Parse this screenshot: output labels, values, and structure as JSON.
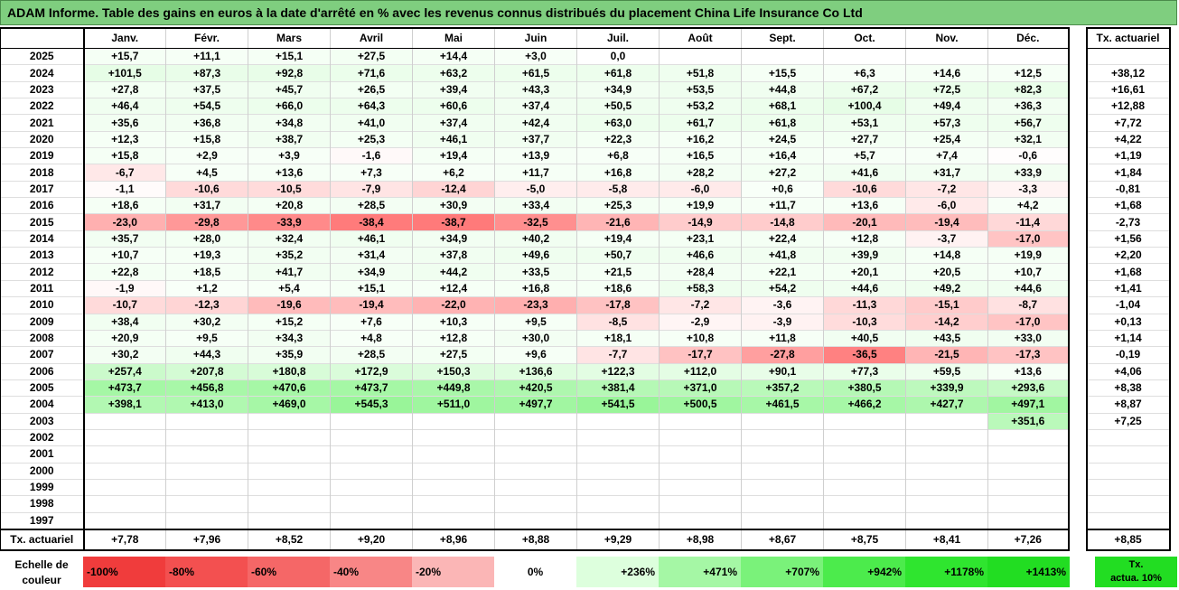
{
  "title": "ADAM Informe. Table des gains en euros à la date d'arrêté en % avec les revenus connus distribués du placement China Life Insurance Co Ltd",
  "months": [
    "Janv.",
    "Févr.",
    "Mars",
    "Avril",
    "Mai",
    "Juin",
    "Juil.",
    "Août",
    "Sept.",
    "Oct.",
    "Nov.",
    "Déc."
  ],
  "tx_header": "Tx. actuariel",
  "rows": [
    {
      "year": "2025",
      "values": [
        "+15,7",
        "+11,1",
        "+15,1",
        "+27,5",
        "+14,4",
        "+3,0",
        "0,0",
        "",
        "",
        "",
        "",
        ""
      ],
      "tx": ""
    },
    {
      "year": "2024",
      "values": [
        "+101,5",
        "+87,3",
        "+92,8",
        "+71,6",
        "+63,2",
        "+61,5",
        "+61,8",
        "+51,8",
        "+15,5",
        "+6,3",
        "+14,6",
        "+12,5"
      ],
      "tx": "+38,12"
    },
    {
      "year": "2023",
      "values": [
        "+27,8",
        "+37,5",
        "+45,7",
        "+26,5",
        "+39,4",
        "+43,3",
        "+34,9",
        "+53,5",
        "+44,8",
        "+67,2",
        "+72,5",
        "+82,3"
      ],
      "tx": "+16,61"
    },
    {
      "year": "2022",
      "values": [
        "+46,4",
        "+54,5",
        "+66,0",
        "+64,3",
        "+60,6",
        "+37,4",
        "+50,5",
        "+53,2",
        "+68,1",
        "+100,4",
        "+49,4",
        "+36,3"
      ],
      "tx": "+12,88"
    },
    {
      "year": "2021",
      "values": [
        "+35,6",
        "+36,8",
        "+34,8",
        "+41,0",
        "+37,4",
        "+42,4",
        "+63,0",
        "+61,7",
        "+61,8",
        "+53,1",
        "+57,3",
        "+56,7"
      ],
      "tx": "+7,72"
    },
    {
      "year": "2020",
      "values": [
        "+12,3",
        "+15,8",
        "+38,7",
        "+25,3",
        "+46,1",
        "+37,7",
        "+22,3",
        "+16,2",
        "+24,5",
        "+27,7",
        "+25,4",
        "+32,1"
      ],
      "tx": "+4,22"
    },
    {
      "year": "2019",
      "values": [
        "+15,8",
        "+2,9",
        "+3,9",
        "-1,6",
        "+19,4",
        "+13,9",
        "+6,8",
        "+16,5",
        "+16,4",
        "+5,7",
        "+7,4",
        "-0,6"
      ],
      "tx": "+1,19"
    },
    {
      "year": "2018",
      "values": [
        "-6,7",
        "+4,5",
        "+13,6",
        "+7,3",
        "+6,2",
        "+11,7",
        "+16,8",
        "+28,2",
        "+27,2",
        "+41,6",
        "+31,7",
        "+33,9"
      ],
      "tx": "+1,84"
    },
    {
      "year": "2017",
      "values": [
        "-1,1",
        "-10,6",
        "-10,5",
        "-7,9",
        "-12,4",
        "-5,0",
        "-5,8",
        "-6,0",
        "+0,6",
        "-10,6",
        "-7,2",
        "-3,3"
      ],
      "tx": "-0,81"
    },
    {
      "year": "2016",
      "values": [
        "+18,6",
        "+31,7",
        "+20,8",
        "+28,5",
        "+30,9",
        "+33,4",
        "+25,3",
        "+19,9",
        "+11,7",
        "+13,6",
        "-6,0",
        "+4,2"
      ],
      "tx": "+1,68"
    },
    {
      "year": "2015",
      "values": [
        "-23,0",
        "-29,8",
        "-33,9",
        "-38,4",
        "-38,7",
        "-32,5",
        "-21,6",
        "-14,9",
        "-14,8",
        "-20,1",
        "-19,4",
        "-11,4"
      ],
      "tx": "-2,73"
    },
    {
      "year": "2014",
      "values": [
        "+35,7",
        "+28,0",
        "+32,4",
        "+46,1",
        "+34,9",
        "+40,2",
        "+19,4",
        "+23,1",
        "+22,4",
        "+12,8",
        "-3,7",
        "-17,0"
      ],
      "tx": "+1,56"
    },
    {
      "year": "2013",
      "values": [
        "+10,7",
        "+19,3",
        "+35,2",
        "+31,4",
        "+37,8",
        "+49,6",
        "+50,7",
        "+46,6",
        "+41,8",
        "+39,9",
        "+14,8",
        "+19,9"
      ],
      "tx": "+2,20"
    },
    {
      "year": "2012",
      "values": [
        "+22,8",
        "+18,5",
        "+41,7",
        "+34,9",
        "+44,2",
        "+33,5",
        "+21,5",
        "+28,4",
        "+22,1",
        "+20,1",
        "+20,5",
        "+10,7"
      ],
      "tx": "+1,68"
    },
    {
      "year": "2011",
      "values": [
        "-1,9",
        "+1,2",
        "+5,4",
        "+15,1",
        "+12,4",
        "+16,8",
        "+18,6",
        "+58,3",
        "+54,2",
        "+44,6",
        "+49,2",
        "+44,6"
      ],
      "tx": "+1,41"
    },
    {
      "year": "2010",
      "values": [
        "-10,7",
        "-12,3",
        "-19,6",
        "-19,4",
        "-22,0",
        "-23,3",
        "-17,8",
        "-7,2",
        "-3,6",
        "-11,3",
        "-15,1",
        "-8,7"
      ],
      "tx": "-1,04"
    },
    {
      "year": "2009",
      "values": [
        "+38,4",
        "+30,2",
        "+15,2",
        "+7,6",
        "+10,3",
        "+9,5",
        "-8,5",
        "-2,9",
        "-3,9",
        "-10,3",
        "-14,2",
        "-17,0"
      ],
      "tx": "+0,13"
    },
    {
      "year": "2008",
      "values": [
        "+20,9",
        "+9,5",
        "+34,3",
        "+4,8",
        "+12,8",
        "+30,0",
        "+18,1",
        "+10,8",
        "+11,8",
        "+40,5",
        "+43,5",
        "+33,0"
      ],
      "tx": "+1,14"
    },
    {
      "year": "2007",
      "values": [
        "+30,2",
        "+44,3",
        "+35,9",
        "+28,5",
        "+27,5",
        "+9,6",
        "-7,7",
        "-17,7",
        "-27,8",
        "-36,5",
        "-21,5",
        "-17,3"
      ],
      "tx": "-0,19"
    },
    {
      "year": "2006",
      "values": [
        "+257,4",
        "+207,8",
        "+180,8",
        "+172,9",
        "+150,3",
        "+136,6",
        "+122,3",
        "+112,0",
        "+90,1",
        "+77,3",
        "+59,5",
        "+13,6"
      ],
      "tx": "+4,06"
    },
    {
      "year": "2005",
      "values": [
        "+473,7",
        "+456,8",
        "+470,6",
        "+473,7",
        "+449,8",
        "+420,5",
        "+381,4",
        "+371,0",
        "+357,2",
        "+380,5",
        "+339,9",
        "+293,6"
      ],
      "tx": "+8,38"
    },
    {
      "year": "2004",
      "values": [
        "+398,1",
        "+413,0",
        "+469,0",
        "+545,3",
        "+511,0",
        "+497,7",
        "+541,5",
        "+500,5",
        "+461,5",
        "+466,2",
        "+427,7",
        "+497,1"
      ],
      "tx": "+8,87"
    },
    {
      "year": "2003",
      "values": [
        "",
        "",
        "",
        "",
        "",
        "",
        "",
        "",
        "",
        "",
        "",
        "+351,6"
      ],
      "tx": "+7,25"
    },
    {
      "year": "2002",
      "values": [
        "",
        "",
        "",
        "",
        "",
        "",
        "",
        "",
        "",
        "",
        "",
        ""
      ],
      "tx": ""
    },
    {
      "year": "2001",
      "values": [
        "",
        "",
        "",
        "",
        "",
        "",
        "",
        "",
        "",
        "",
        "",
        ""
      ],
      "tx": ""
    },
    {
      "year": "2000",
      "values": [
        "",
        "",
        "",
        "",
        "",
        "",
        "",
        "",
        "",
        "",
        "",
        ""
      ],
      "tx": ""
    },
    {
      "year": "1999",
      "values": [
        "",
        "",
        "",
        "",
        "",
        "",
        "",
        "",
        "",
        "",
        "",
        ""
      ],
      "tx": ""
    },
    {
      "year": "1998",
      "values": [
        "",
        "",
        "",
        "",
        "",
        "",
        "",
        "",
        "",
        "",
        "",
        ""
      ],
      "tx": ""
    },
    {
      "year": "1997",
      "values": [
        "",
        "",
        "",
        "",
        "",
        "",
        "",
        "",
        "",
        "",
        "",
        ""
      ],
      "tx": ""
    }
  ],
  "footer": {
    "label": "Tx. actuariel",
    "values": [
      "+7,78",
      "+7,96",
      "+8,52",
      "+9,20",
      "+8,96",
      "+8,88",
      "+9,29",
      "+8,98",
      "+8,67",
      "+8,75",
      "+8,41",
      "+7,26"
    ],
    "tx": "+8,85"
  },
  "scale": {
    "label_line1": "Echelle de",
    "label_line2": "couleur",
    "cells": [
      {
        "label": "-100%",
        "color": "#f03c3c"
      },
      {
        "label": "-80%",
        "color": "#f35050"
      },
      {
        "label": "-60%",
        "color": "#f56767"
      },
      {
        "label": "-40%",
        "color": "#f88686"
      },
      {
        "label": "-20%",
        "color": "#fbb6b6"
      },
      {
        "label": "0%",
        "color": "#ffffff"
      },
      {
        "label": "+236%",
        "color": "#ddffdd"
      },
      {
        "label": "+471%",
        "color": "#a5f7a5"
      },
      {
        "label": "+707%",
        "color": "#7af27a"
      },
      {
        "label": "+942%",
        "color": "#4ceb4c"
      },
      {
        "label": "+1178%",
        "color": "#2fe52f"
      },
      {
        "label": "+1413%",
        "color": "#22dd22"
      }
    ],
    "tx_line1": "Tx.",
    "tx_line2": "actua. 10%",
    "tx_color": "#22dd22"
  }
}
